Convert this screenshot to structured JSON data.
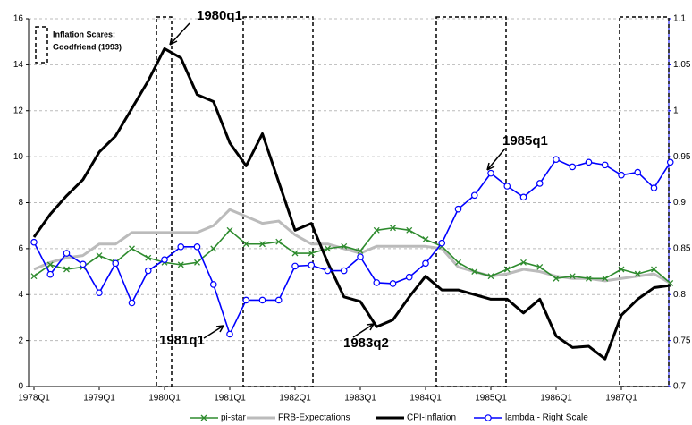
{
  "chart_data": {
    "type": "line",
    "categories": [
      "1978Q1",
      null,
      null,
      null,
      "1979Q1",
      null,
      null,
      null,
      "1980Q1",
      null,
      null,
      null,
      "1981Q1",
      null,
      null,
      null,
      "1982Q1",
      null,
      null,
      null,
      "1983Q1",
      null,
      null,
      null,
      "1984Q1",
      null,
      null,
      null,
      "1985Q1",
      null,
      null,
      null,
      "1986Q1",
      null,
      null,
      null,
      "1987Q1",
      null,
      null,
      null
    ],
    "series": [
      {
        "name": "pi-star",
        "color": "#2e8b2e",
        "marker": "x",
        "values": [
          4.8,
          5.3,
          5.1,
          5.2,
          5.7,
          5.4,
          6.0,
          5.6,
          5.4,
          5.3,
          5.4,
          6.0,
          6.8,
          6.2,
          6.2,
          6.3,
          5.8,
          5.8,
          6.0,
          6.1,
          5.9,
          6.8,
          6.9,
          6.8,
          6.4,
          6.1,
          5.4,
          5.0,
          4.8,
          5.1,
          5.4,
          5.2,
          4.7,
          4.8,
          4.7,
          4.7,
          5.1,
          4.9,
          5.1,
          4.5
        ]
      },
      {
        "name": "FRB-Expectations",
        "color": "#bbbbbb",
        "marker": "none",
        "values": [
          5.1,
          5.4,
          5.6,
          5.7,
          6.2,
          6.2,
          6.7,
          6.7,
          6.7,
          6.7,
          6.7,
          7.0,
          7.7,
          7.4,
          7.1,
          7.2,
          6.6,
          6.2,
          6.2,
          6.0,
          5.8,
          6.1,
          6.1,
          6.1,
          6.1,
          6.0,
          5.2,
          5.0,
          4.8,
          4.9,
          5.1,
          5.0,
          4.8,
          4.7,
          4.7,
          4.6,
          4.7,
          4.8,
          4.9,
          4.5
        ]
      },
      {
        "name": "CPI-Inflation",
        "color": "#000000",
        "marker": "none",
        "values": [
          6.5,
          7.5,
          8.3,
          9.0,
          10.2,
          10.9,
          12.1,
          13.3,
          14.7,
          14.3,
          12.7,
          12.4,
          10.6,
          9.6,
          11.0,
          8.9,
          6.8,
          7.1,
          5.4,
          3.9,
          3.7,
          2.6,
          2.9,
          3.9,
          4.8,
          4.2,
          4.2,
          4.0,
          3.8,
          3.8,
          3.2,
          3.8,
          2.2,
          1.7,
          1.75,
          1.2,
          3.1,
          3.8,
          4.3,
          4.4
        ]
      },
      {
        "name": "lambda - Right Scale",
        "color": "#0000ff",
        "marker": "circle",
        "axis": "y2",
        "values": [
          0.857,
          0.822,
          0.845,
          0.833,
          0.802,
          0.834,
          0.791,
          0.826,
          0.838,
          0.852,
          0.852,
          0.811,
          0.757,
          0.794,
          0.794,
          0.794,
          0.831,
          0.832,
          0.826,
          0.826,
          0.841,
          0.813,
          0.812,
          0.819,
          0.834,
          0.856,
          0.893,
          0.908,
          0.932,
          0.918,
          0.906,
          0.921,
          0.947,
          0.939,
          0.944,
          0.941,
          0.93,
          0.933,
          0.916,
          0.944
        ]
      }
    ],
    "ylim": [
      0,
      16
    ],
    "yticks": [
      0,
      2,
      4,
      6,
      8,
      10,
      12,
      14,
      16
    ],
    "y2lim": [
      0.7,
      1.1
    ],
    "y2ticks": [
      0.7,
      0.75,
      0.8,
      0.85,
      0.9,
      0.95,
      1,
      1.05,
      1.1
    ],
    "grid": true,
    "annotations": [
      "1980q1",
      "1981q1",
      "1983q2",
      "1985q1"
    ],
    "inflation_scares_note": [
      "Inflation Scares:",
      "Goodfriend (1993)"
    ]
  }
}
